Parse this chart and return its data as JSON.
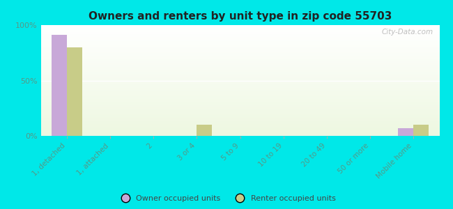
{
  "title": "Owners and renters by unit type in zip code 55703",
  "categories": [
    "1, detached",
    "1, attached",
    "2",
    "3 or 4",
    "5 to 9",
    "10 to 19",
    "20 to 49",
    "50 or more",
    "Mobile home"
  ],
  "owner_values": [
    91,
    0,
    0,
    0,
    0,
    0,
    0,
    0,
    7
  ],
  "renter_values": [
    80,
    0,
    0,
    10,
    0,
    0,
    0,
    0,
    10
  ],
  "owner_color": "#c8a8d8",
  "renter_color": "#c8cc88",
  "outer_background": "#00e8e8",
  "ylim": [
    0,
    100
  ],
  "yticks": [
    0,
    50,
    100
  ],
  "ytick_labels": [
    "0%",
    "50%",
    "100%"
  ],
  "bar_width": 0.35,
  "legend_owner": "Owner occupied units",
  "legend_renter": "Renter occupied units",
  "watermark": "City-Data.com",
  "title_fontsize": 11,
  "tick_fontsize": 8,
  "xtick_fontsize": 7.5,
  "tick_color": "#559988"
}
